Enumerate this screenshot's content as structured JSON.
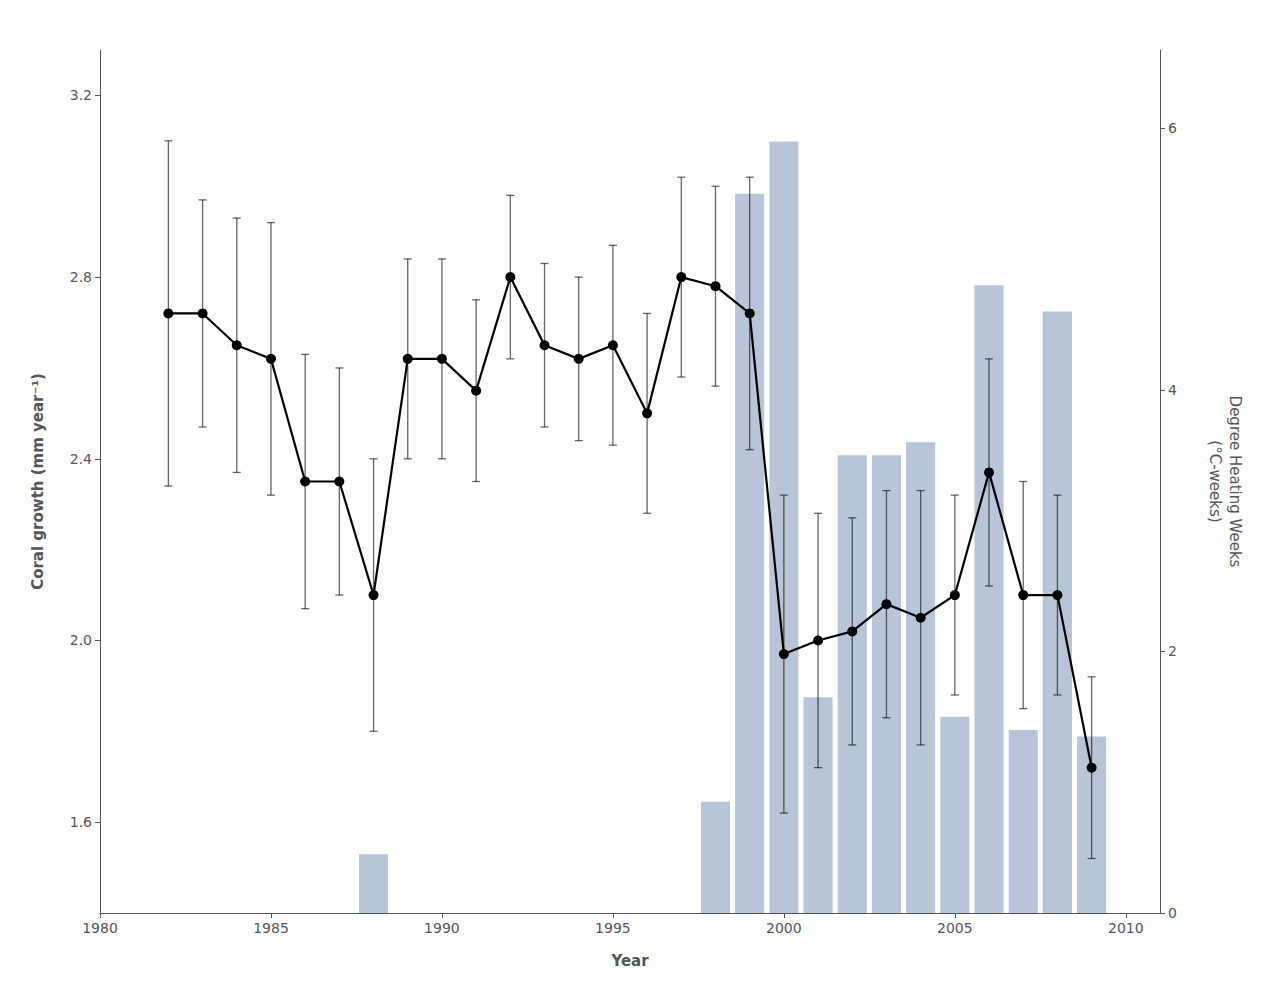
{
  "chart_data": {
    "type": "line",
    "xlabel": "Year",
    "ylabel": "Coral growth (mm year⁻¹)",
    "y2label": "Degree Heating Weeks\n(°C-weeks)",
    "xlim": [
      1980,
      2011
    ],
    "xticks": [
      1980,
      1985,
      1990,
      1995,
      2000,
      2005,
      2010
    ],
    "ylim": [
      1.4,
      3.3
    ],
    "yticks": [
      1.6,
      {
        "value": 2.0,
        "label": "2.0"
      },
      2.4,
      2.8,
      3.2
    ],
    "y2lim": [
      0,
      6.6
    ],
    "y2ticks": [
      0,
      2,
      4,
      6
    ],
    "grid": false,
    "series": [
      {
        "type": "bar",
        "axis": "y2",
        "color": "#b8c4d8",
        "x": [
          1988,
          1998,
          1999,
          2000,
          2001,
          2002,
          2003,
          2004,
          2005,
          2006,
          2007,
          2008,
          2009
        ],
        "values": [
          0.45,
          0.85,
          5.5,
          5.9,
          1.65,
          3.5,
          3.5,
          3.6,
          1.5,
          4.8,
          1.4,
          4.6,
          1.35
        ]
      },
      {
        "type": "line",
        "color": "black",
        "marker": "circle",
        "x": [
          1982,
          1983,
          1984,
          1985,
          1986,
          1987,
          1988,
          1989,
          1990,
          1991,
          1992,
          1993,
          1994,
          1995,
          1996,
          1997,
          1998,
          1999,
          2000,
          2001,
          2002,
          2003,
          2004,
          2005,
          2006,
          2007,
          2008,
          2009
        ],
        "values": [
          2.72,
          2.72,
          2.65,
          2.62,
          2.35,
          2.35,
          2.1,
          2.62,
          2.62,
          2.55,
          2.8,
          2.65,
          2.62,
          2.65,
          2.5,
          2.8,
          2.78,
          2.72,
          1.97,
          2.0,
          2.02,
          2.08,
          2.05,
          2.1,
          2.37,
          2.1,
          2.1,
          1.72
        ],
        "error_upper": [
          0.38,
          0.25,
          0.28,
          0.3,
          0.28,
          0.25,
          0.3,
          0.22,
          0.22,
          0.2,
          0.18,
          0.18,
          0.18,
          0.22,
          0.22,
          0.22,
          0.22,
          0.3,
          0.35,
          0.28,
          0.25,
          0.25,
          0.28,
          0.22,
          0.25,
          0.25,
          0.22,
          0.2
        ],
        "error_lower": [
          0.38,
          0.25,
          0.28,
          0.3,
          0.28,
          0.25,
          0.3,
          0.22,
          0.22,
          0.2,
          0.18,
          0.18,
          0.18,
          0.22,
          0.22,
          0.22,
          0.22,
          0.3,
          0.35,
          0.28,
          0.25,
          0.25,
          0.28,
          0.22,
          0.25,
          0.25,
          0.22,
          0.2
        ]
      }
    ]
  }
}
